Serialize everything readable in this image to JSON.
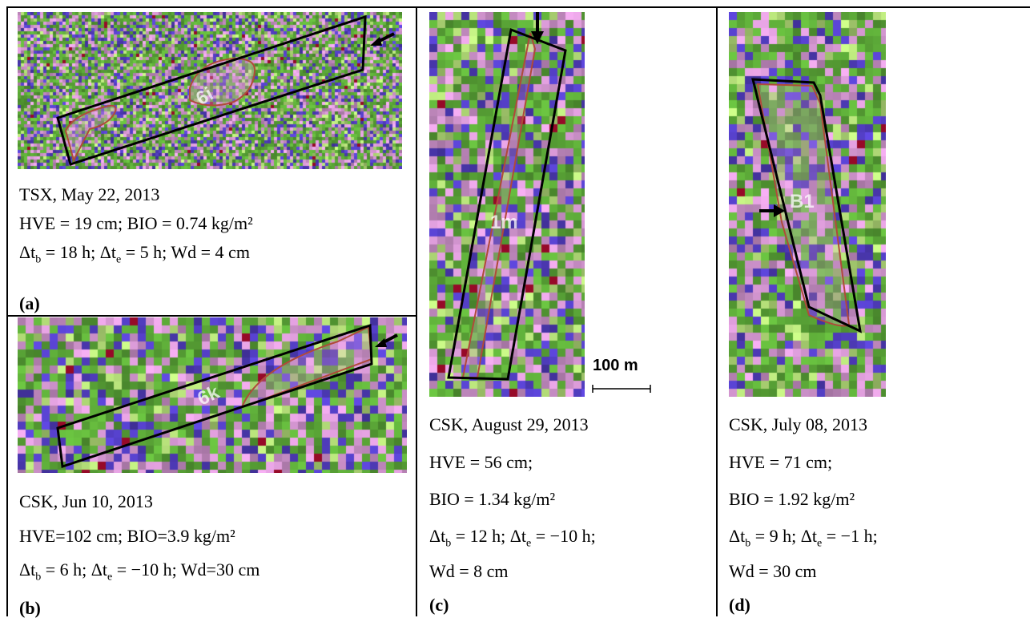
{
  "panels": {
    "a": {
      "map_label": "6i",
      "caption_line1": "TSX, May 22, 2013",
      "caption_line2": "HVE = 19 cm; BIO = 0.74 kg/m²",
      "caption_line3": {
        "p1": "Δt",
        "s1": "b",
        "p2": " = 18 h; Δt",
        "s2": "e",
        "p3": " = 5 h; Wd = 4 cm"
      },
      "tag": "(a)"
    },
    "b": {
      "map_label": "6k",
      "caption_line1": "CSK, Jun 10, 2013",
      "caption_line2": "HVE=102 cm; BIO=3.9 kg/m²",
      "caption_line3": {
        "p1": "Δt",
        "s1": "b",
        "p2": " = 6 h; Δt",
        "s2": "e",
        "p3": " = −10 h; Wd=30 cm"
      },
      "tag": "(b)"
    },
    "c": {
      "map_label": "1m",
      "scale_label": "100 m",
      "caption_line1": "CSK, August 29, 2013",
      "caption_line2": "HVE = 56 cm;",
      "caption_line3": "BIO = 1.34 kg/m²",
      "caption_line4": {
        "p1": "Δt",
        "s1": "b",
        "p2": " = 12 h; Δt",
        "s2": "e",
        "p3": " = −10 h;"
      },
      "caption_line5": "Wd = 8 cm",
      "tag": "(c)"
    },
    "d": {
      "map_label": "B1",
      "caption_line1": "CSK, July 08, 2013",
      "caption_line2": "HVE = 71 cm;",
      "caption_line3": "BIO = 1.92 kg/m²",
      "caption_line4": {
        "p1": "Δt",
        "s1": "b",
        "p2": " = 9 h; Δt",
        "s2": "e",
        "p3": " = −1 h;"
      },
      "caption_line5": "Wd = 30 cm",
      "tag": "(d)"
    }
  },
  "colors": {
    "outline": "#000000",
    "feature_outline": "#b04a3a",
    "green": "#5fae3a",
    "magenta": "#d99ad6",
    "blue": "#5540c8",
    "lime": "#b6e07a"
  }
}
